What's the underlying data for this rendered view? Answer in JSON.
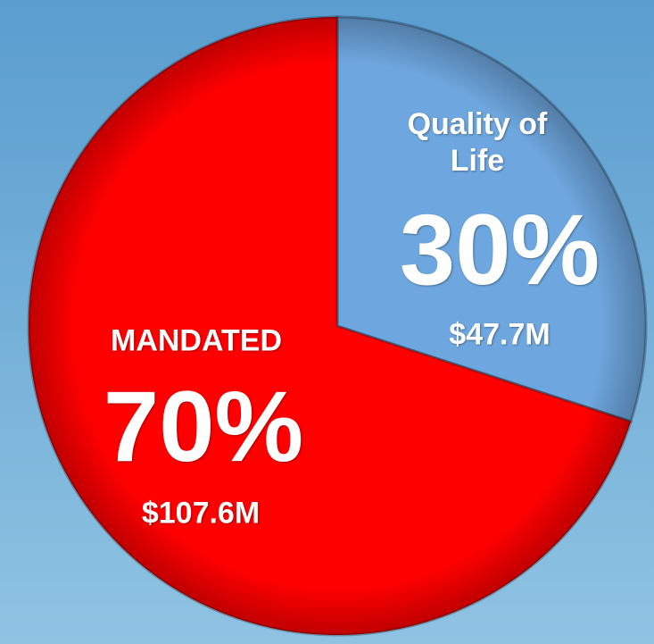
{
  "chart_data": {
    "type": "pie",
    "categories": [
      "Quality of Life",
      "MANDATED"
    ],
    "values": [
      30,
      70
    ],
    "value_labels": [
      "30%",
      "70%"
    ],
    "amounts": [
      47700000,
      107600000
    ],
    "amount_labels": [
      "$47.7M",
      "$107.6M"
    ],
    "colors": [
      "#6ea7df",
      "#ff0000"
    ]
  }
}
